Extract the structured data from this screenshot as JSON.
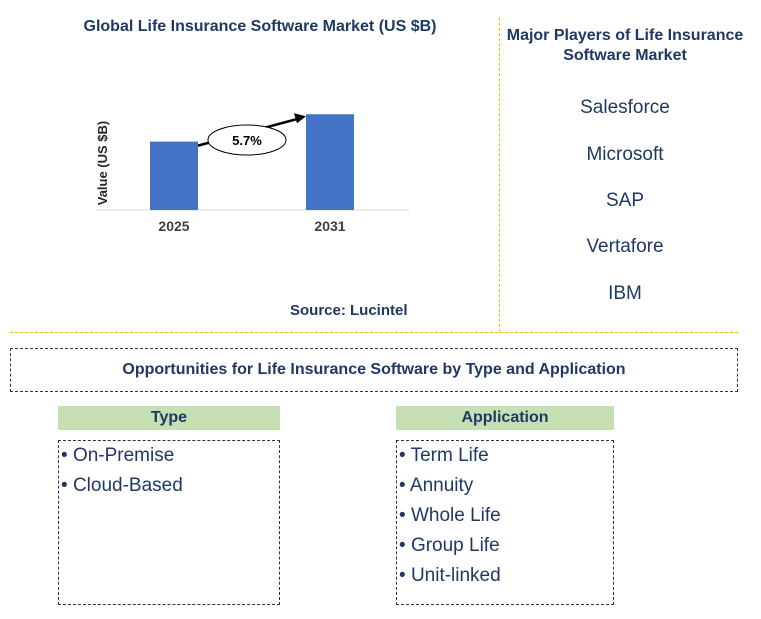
{
  "chart": {
    "title": "Global Life Insurance Software Market (US $B)",
    "source": "Source: Lucintel"
  },
  "chart_data": {
    "type": "bar",
    "title": "Global Life Insurance Software Market (US $B)",
    "categories": [
      "2025",
      "2031"
    ],
    "values": [
      1.0,
      1.4
    ],
    "ylabel": "Value (US $B)",
    "xlabel": "",
    "ylim": [
      0,
      1.55
    ],
    "grid": false,
    "bar_color": "#4472c4",
    "annotation": {
      "text": "5.7%",
      "type": "CAGR arrow",
      "from": "2025",
      "to": "2031"
    }
  },
  "players": {
    "title": "Major Players of Life Insurance Software Market",
    "items": [
      "Salesforce",
      "Microsoft",
      "SAP",
      "Vertafore",
      "IBM"
    ]
  },
  "opportunities": {
    "title": "Opportunities for Life Insurance Software by Type and Application",
    "type": {
      "heading": "Type",
      "items": [
        "On-Premise",
        "Cloud-Based"
      ]
    },
    "application": {
      "heading": "Application",
      "items": [
        "Term Life",
        "Annuity",
        "Whole Life",
        "Group Life",
        "Unit-linked"
      ]
    }
  }
}
